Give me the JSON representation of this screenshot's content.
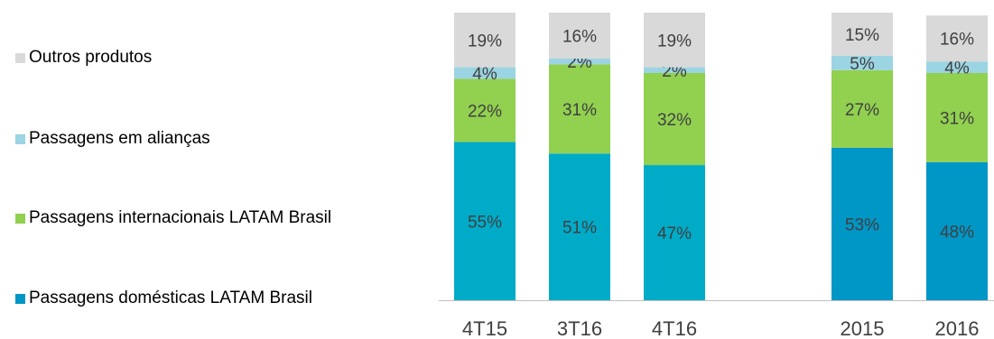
{
  "chart_data": {
    "type": "bar",
    "stacked": true,
    "percent": true,
    "categories": [
      "4T15",
      "3T16",
      "4T16",
      "2015",
      "2016"
    ],
    "series": [
      {
        "name": "Passagens domésticas LATAM Brasil",
        "colors": [
          "#00ABC8",
          "#00ABC8",
          "#00ABC8",
          "#0096C6",
          "#0096C6"
        ],
        "values": [
          55,
          51,
          47,
          53,
          48
        ]
      },
      {
        "name": "Passagens internacionais LATAM Brasil",
        "colors": [
          "#92D050",
          "#92D050",
          "#92D050",
          "#92D050",
          "#92D050"
        ],
        "values": [
          22,
          31,
          32,
          27,
          31
        ]
      },
      {
        "name": "Passagens em alianças",
        "colors": [
          "#9BD4E2",
          "#9BD4E2",
          "#9BD4E2",
          "#9BD4E2",
          "#9BD4E2"
        ],
        "values": [
          4,
          2,
          2,
          5,
          4
        ]
      },
      {
        "name": "Outros produtos",
        "colors": [
          "#D9D9D9",
          "#D9D9D9",
          "#D9D9D9",
          "#D9D9D9",
          "#D9D9D9"
        ],
        "values": [
          19,
          16,
          19,
          15,
          16
        ]
      }
    ],
    "legend": {
      "placement": "left",
      "order": [
        "Outros produtos",
        "Passagens em alianças",
        "Passagens internacionais LATAM Brasil",
        "Passagens domésticas LATAM Brasil"
      ],
      "colors": [
        "#D9D9D9",
        "#9BD4E2",
        "#92D050",
        "#0096C6"
      ]
    },
    "ylim": [
      0,
      100
    ],
    "grid": false,
    "label_color": "#404040",
    "axis_color": "#BFBFBF"
  }
}
